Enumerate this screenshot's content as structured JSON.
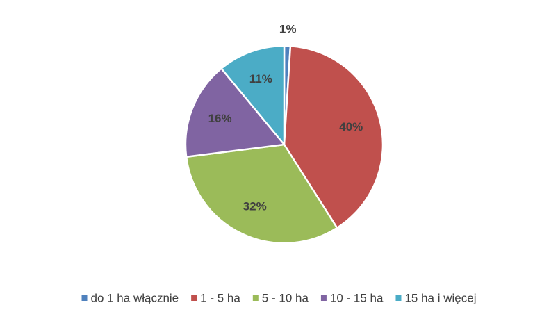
{
  "chart_data": {
    "type": "pie",
    "categories": [
      "do 1 ha włącznie",
      "1 - 5 ha",
      "5 - 10 ha",
      "10 - 15 ha",
      "15 ha i więcej"
    ],
    "values": [
      1,
      40,
      32,
      16,
      11
    ],
    "value_labels": [
      "1%",
      "40%",
      "32%",
      "16%",
      "11%"
    ],
    "colors": [
      "#4f81bd",
      "#c0504d",
      "#9bbb59",
      "#8064a2",
      "#4bacc6"
    ],
    "legend": "bottom"
  }
}
